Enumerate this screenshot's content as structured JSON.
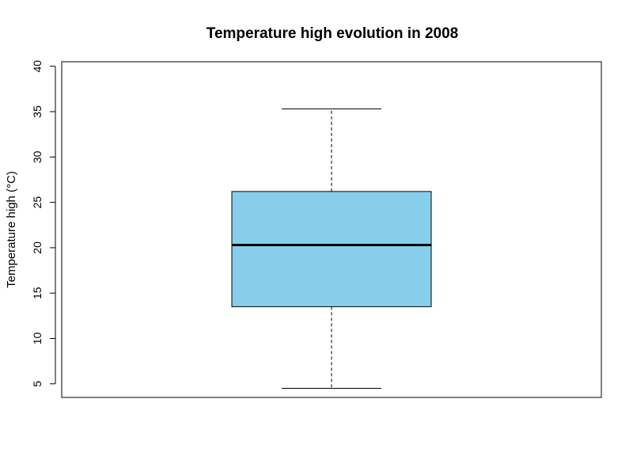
{
  "chart_data": {
    "type": "box",
    "title": "Temperature high evolution in 2008",
    "xlabel": "",
    "ylabel": "Temperature high (°C)",
    "ylim": [
      3.5,
      40.5
    ],
    "y_ticks": [
      5,
      10,
      15,
      20,
      25,
      30,
      35,
      40
    ],
    "y_tick_labels": [
      "5",
      "10",
      "15",
      "20",
      "25",
      "30",
      "35",
      "40"
    ],
    "grid": false,
    "box": {
      "min": 4.5,
      "q1": 13.5,
      "median": 20.3,
      "q3": 26.2,
      "max": 35.3
    },
    "box_fill": "#87ceeb",
    "line_color": "#000000"
  }
}
